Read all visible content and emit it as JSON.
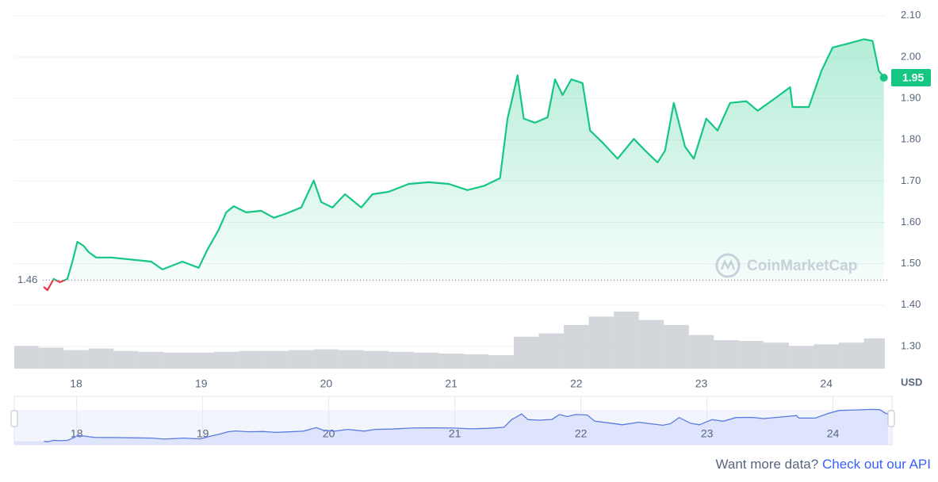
{
  "chart_data": {
    "type": "area",
    "x": [
      17.74,
      17.77,
      17.82,
      17.87,
      17.93,
      17.97,
      18.01,
      18.06,
      18.1,
      18.16,
      18.28,
      18.47,
      18.6,
      18.69,
      18.85,
      18.98,
      19.05,
      19.14,
      19.2,
      19.26,
      19.36,
      19.48,
      19.58,
      19.67,
      19.8,
      19.9,
      19.96,
      20.05,
      20.15,
      20.28,
      20.37,
      20.5,
      20.66,
      20.82,
      20.98,
      21.13,
      21.26,
      21.39,
      21.45,
      21.48,
      21.53,
      21.58,
      21.67,
      21.77,
      21.83,
      21.89,
      21.96,
      22.05,
      22.11,
      22.21,
      22.33,
      22.46,
      22.55,
      22.65,
      22.71,
      22.78,
      22.87,
      22.94,
      23.04,
      23.13,
      23.23,
      23.36,
      23.45,
      23.58,
      23.71,
      23.73,
      23.86,
      23.96,
      24.05,
      24.18,
      24.3,
      24.37,
      24.42,
      24.46
    ],
    "values": [
      1.444,
      1.436,
      1.463,
      1.455,
      1.463,
      1.505,
      1.553,
      1.543,
      1.528,
      1.515,
      1.515,
      1.509,
      1.505,
      1.486,
      1.505,
      1.49,
      1.534,
      1.582,
      1.624,
      1.639,
      1.624,
      1.628,
      1.611,
      1.62,
      1.636,
      1.701,
      1.649,
      1.636,
      1.668,
      1.636,
      1.668,
      1.674,
      1.693,
      1.697,
      1.693,
      1.678,
      1.688,
      1.707,
      1.851,
      1.889,
      1.956,
      1.851,
      1.841,
      1.854,
      1.946,
      1.908,
      1.946,
      1.937,
      1.822,
      1.793,
      1.754,
      1.802,
      1.774,
      1.745,
      1.774,
      1.889,
      1.783,
      1.754,
      1.851,
      1.822,
      1.889,
      1.893,
      1.87,
      1.898,
      1.927,
      1.879,
      1.879,
      1.966,
      2.023,
      2.033,
      2.043,
      2.039,
      1.966,
      1.952
    ],
    "color": "#16c784",
    "down_color": "#ea3943",
    "baseline": 1.46,
    "last_price": 1.95,
    "volume": {
      "x": [
        17.6,
        17.8,
        18.0,
        18.2,
        18.4,
        18.6,
        18.8,
        19.0,
        19.2,
        19.4,
        19.6,
        19.8,
        20.0,
        20.2,
        20.4,
        20.6,
        20.8,
        21.0,
        21.2,
        21.4,
        21.6,
        21.8,
        22.0,
        22.2,
        22.4,
        22.6,
        22.8,
        23.0,
        23.2,
        23.4,
        23.6,
        23.8,
        24.0,
        24.2,
        24.4
      ],
      "values": [
        27,
        25,
        22,
        24,
        21,
        20,
        19,
        19,
        20,
        21,
        21,
        22,
        23,
        22,
        21,
        20,
        19,
        18,
        17,
        16,
        38,
        42,
        52,
        62,
        68,
        58,
        52,
        40,
        34,
        33,
        31,
        27,
        29,
        31,
        36
      ],
      "color": "#c8ccd2"
    },
    "xlim": [
      17.505,
      24.468
    ],
    "ylim": [
      1.246,
      2.138
    ],
    "xticks": [
      18,
      19,
      20,
      21,
      22,
      23,
      24
    ],
    "yticks": [
      {
        "value": 1.3,
        "label": "1.30"
      },
      {
        "value": 1.4,
        "label": "1.40"
      },
      {
        "value": 1.5,
        "label": "1.50"
      },
      {
        "value": 1.6,
        "label": "1.60"
      },
      {
        "value": 1.7,
        "label": "1.70"
      },
      {
        "value": 1.8,
        "label": "1.80"
      },
      {
        "value": 1.9,
        "label": "1.90"
      },
      {
        "value": 2.0,
        "label": "2.00"
      },
      {
        "value": 2.1,
        "label": "2.10"
      }
    ],
    "y_unit": "USD",
    "grid": true,
    "watermark": "CoinMarketCap",
    "navigator_color": "#5a7be0"
  },
  "footer": {
    "text": "Want more data?",
    "link": "Check out our API"
  }
}
